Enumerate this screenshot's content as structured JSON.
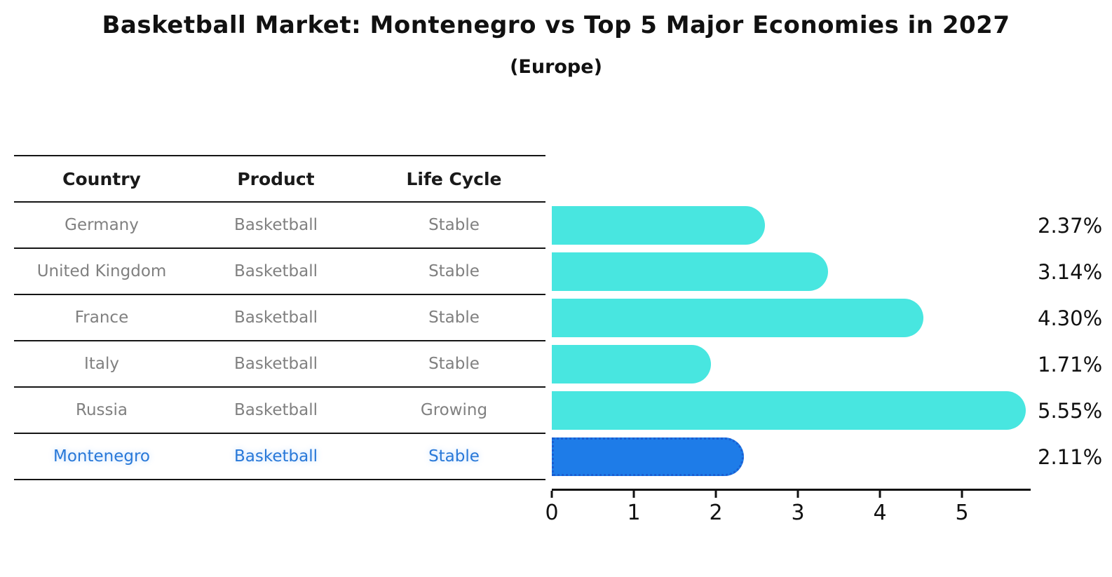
{
  "title": "Basketball Market: Montenegro vs Top 5 Major Economies in 2027",
  "subtitle": "(Europe)",
  "table": {
    "headers": [
      "Country",
      "Product",
      "Life Cycle"
    ],
    "rows": [
      {
        "country": "Germany",
        "product": "Basketball",
        "life_cycle": "Stable",
        "highlighted": false
      },
      {
        "country": "United Kingdom",
        "product": "Basketball",
        "life_cycle": "Stable",
        "highlighted": false
      },
      {
        "country": "France",
        "product": "Basketball",
        "life_cycle": "Stable",
        "highlighted": false
      },
      {
        "country": "Italy",
        "product": "Basketball",
        "life_cycle": "Stable",
        "highlighted": false
      },
      {
        "country": "Russia",
        "product": "Basketball",
        "life_cycle": "Growing",
        "highlighted": false
      },
      {
        "country": "Montenegro",
        "product": "Basketball",
        "life_cycle": "Stable",
        "highlighted": true
      }
    ]
  },
  "chart_data": {
    "type": "bar",
    "orientation": "horizontal",
    "title": "Basketball Market: Montenegro vs Top 5 Major Economies in 2027",
    "subtitle": "(Europe)",
    "categories": [
      "Germany",
      "United Kingdom",
      "France",
      "Italy",
      "Russia",
      "Montenegro"
    ],
    "values": [
      2.37,
      3.14,
      4.3,
      1.71,
      5.55,
      2.11
    ],
    "value_labels": [
      "2.37%",
      "3.14%",
      "4.30%",
      "1.71%",
      "5.55%",
      "2.11%"
    ],
    "x_ticks": [
      "0",
      "1",
      "2",
      "3",
      "4",
      "5"
    ],
    "xlim": [
      0,
      5.84
    ],
    "grid": false,
    "legend": false,
    "highlight_index": 5
  },
  "colors": {
    "background": "#ffffff",
    "bar": "#48e6e0",
    "highlight_bar": "#1e7ce8",
    "highlight_border": "#1a5ed2",
    "highlight_text": "#2878d8",
    "header_text": "#1a1a1a",
    "body_text": "#808080",
    "axis": "#111111",
    "title_text": "#111111"
  }
}
